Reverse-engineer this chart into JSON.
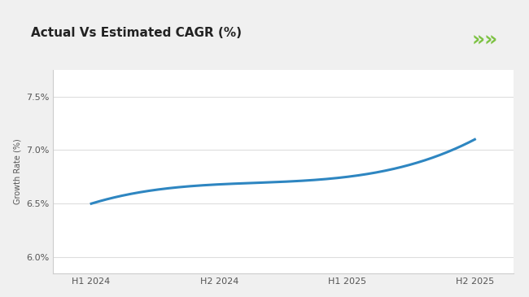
{
  "title": "Actual Vs Estimated CAGR (%)",
  "xlabel": "",
  "ylabel": "Growth Rate (%)",
  "x_labels": [
    "H1 2024",
    "H2 2024",
    "H1 2025",
    "H2 2025"
  ],
  "x_values": [
    0,
    1,
    2,
    3
  ],
  "y_values": [
    6.5,
    6.68,
    6.75,
    7.1
  ],
  "ylim": [
    5.85,
    7.75
  ],
  "yticks": [
    6.0,
    6.5,
    7.0,
    7.5
  ],
  "ytick_labels": [
    "6.0%",
    "6.5%",
    "7.0%",
    "7.5%"
  ],
  "line_color": "#2e86c1",
  "background_color": "#f0f0f0",
  "plot_bg_color": "#ffffff",
  "title_fontsize": 11,
  "axis_label_fontsize": 7,
  "tick_fontsize": 8,
  "green_bar_color": "#7dc243",
  "arrow_color": "#7dc243",
  "title_bar_color": "#ffffff",
  "separator_color": "#7dc243"
}
